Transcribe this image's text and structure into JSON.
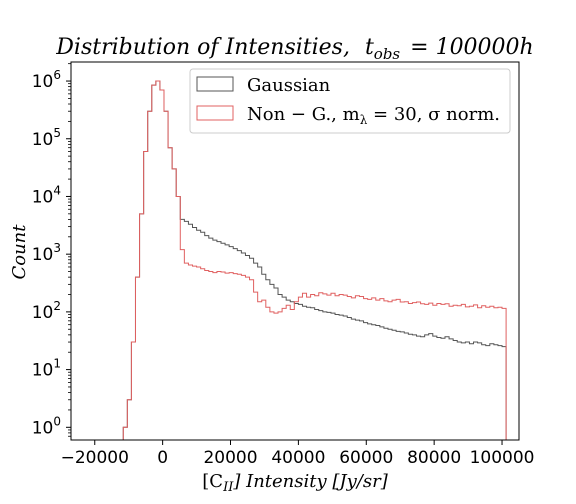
{
  "chart_data": {
    "type": "histogram-step",
    "title": {
      "main": "Distribution of Intensities,",
      "var": "t",
      "sub": "obs",
      "rest": "= 100000h"
    },
    "xlabel": {
      "pre": "[C",
      "sub": "II",
      "post": "] Intensity [Jy/sr]"
    },
    "ylabel": "Count",
    "xlim": [
      -27000,
      105000
    ],
    "ylim_log10": [
      -0.22,
      6.33
    ],
    "yscale": "log",
    "grid": false,
    "legend_position": "top-right",
    "x_ticks": [
      {
        "value": -20000,
        "label": "−20000"
      },
      {
        "value": 0,
        "label": "0"
      },
      {
        "value": 20000,
        "label": "20000"
      },
      {
        "value": 40000,
        "label": "40000"
      },
      {
        "value": 60000,
        "label": "60000"
      },
      {
        "value": 80000,
        "label": "80000"
      },
      {
        "value": 100000,
        "label": "100000"
      }
    ],
    "y_ticks": [
      {
        "exp": 0,
        "base": "10",
        "sup": "0"
      },
      {
        "exp": 1,
        "base": "10",
        "sup": "1"
      },
      {
        "exp": 2,
        "base": "10",
        "sup": "2"
      },
      {
        "exp": 3,
        "base": "10",
        "sup": "3"
      },
      {
        "exp": 4,
        "base": "10",
        "sup": "4"
      },
      {
        "exp": 5,
        "base": "10",
        "sup": "5"
      },
      {
        "exp": 6,
        "base": "10",
        "sup": "6"
      }
    ],
    "bin": {
      "start": -20000,
      "width": 1200
    },
    "series": [
      {
        "name": "Gaussian",
        "color": "#555555",
        "values": [
          0,
          0,
          0,
          0,
          0,
          0,
          0,
          1,
          3,
          30,
          400,
          5000,
          60000,
          300000,
          850000,
          1000000,
          700000,
          300000,
          70000,
          30000,
          10000,
          4000,
          3700,
          3300,
          2900,
          2600,
          2400,
          2100,
          1900,
          1750,
          1650,
          1550,
          1450,
          1350,
          1250,
          1150,
          1050,
          950,
          850,
          700,
          600,
          450,
          360,
          300,
          260,
          200,
          180,
          160,
          150,
          140,
          135,
          125,
          120,
          118,
          110,
          105,
          100,
          98,
          95,
          90,
          88,
          85,
          80,
          75,
          72,
          70,
          65,
          62,
          60,
          58,
          55,
          52,
          50,
          48,
          46,
          45,
          43,
          41,
          40,
          38,
          37,
          40,
          42,
          38,
          36,
          35,
          37,
          34,
          32,
          30,
          29,
          30,
          28,
          30,
          29,
          27,
          26,
          28,
          27,
          26,
          25
        ]
      },
      {
        "name": "Non − G., m",
        "name_sub": "λ",
        "name_rest": " = 30, σ norm.",
        "color": "#e06060",
        "values": [
          0,
          0,
          0,
          0,
          0,
          0,
          0,
          1,
          3,
          30,
          400,
          5000,
          60000,
          300000,
          850000,
          1000000,
          700000,
          300000,
          70000,
          30000,
          10000,
          1200,
          700,
          650,
          620,
          600,
          560,
          520,
          500,
          480,
          500,
          490,
          470,
          480,
          460,
          450,
          430,
          400,
          360,
          220,
          150,
          160,
          120,
          100,
          95,
          100,
          115,
          130,
          110,
          150,
          180,
          210,
          180,
          200,
          190,
          215,
          205,
          195,
          210,
          190,
          200,
          195,
          185,
          175,
          190,
          185,
          170,
          165,
          175,
          160,
          170,
          155,
          150,
          160,
          165,
          148,
          150,
          140,
          145,
          148,
          138,
          135,
          142,
          130,
          140,
          135,
          138,
          125,
          130,
          128,
          135,
          122,
          125,
          132,
          118,
          128,
          120,
          125,
          118,
          120,
          115
        ]
      }
    ]
  }
}
